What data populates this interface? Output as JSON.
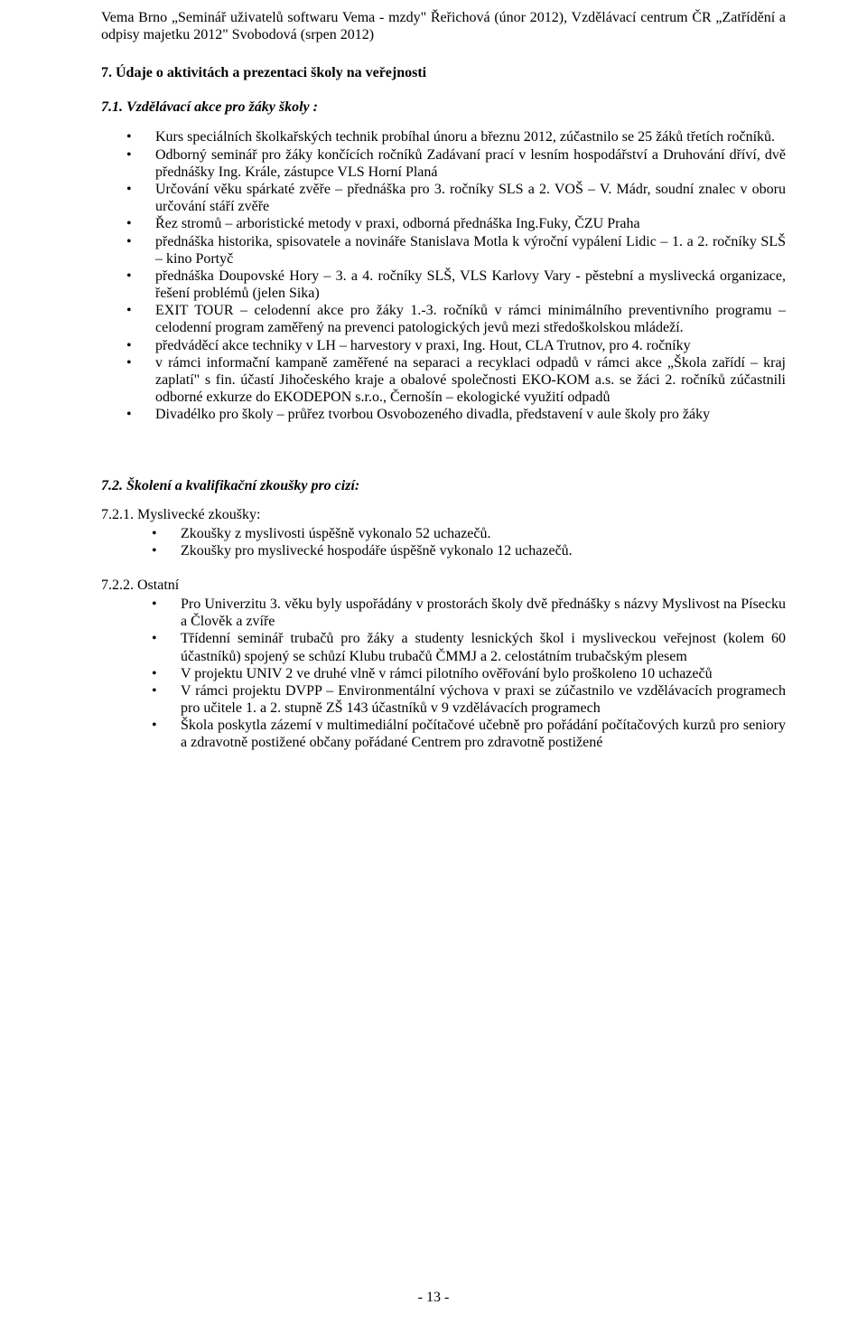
{
  "intro": "Vema Brno „Seminář uživatelů softwaru  Vema - mzdy\" Řeřichová (únor 2012), Vzdělávací centrum ČR „Zatřídění a odpisy majetku 2012\" Svobodová (srpen 2012)",
  "s7": {
    "title": "7. Údaje o aktivitách a prezentaci školy na veřejnosti",
    "s71": {
      "title": "7.1. Vzdělávací akce pro žáky školy :",
      "items": [
        "Kurs speciálních školkařských technik probíhal únoru a březnu 2012, zúčastnilo se 25  žáků třetích ročníků.",
        "Odborný seminář pro žáky končících ročníků  Zadávaní prací v lesním hospodářství a Druhování dříví, dvě přednášky  Ing. Krále, zástupce VLS Horní Planá",
        "Určování věku spárkaté zvěře – přednáška pro 3. ročníky SLS a 2. VOŠ – V. Mádr, soudní znalec v oboru určování stáří zvěře",
        "Řez stromů – arboristické metody v praxi, odborná přednáška Ing.Fuky,  ČZU Praha",
        "přednáška historika, spisovatele a novináře Stanislava Motla k výroční vypálení Lidic – 1. a 2. ročníky SLŠ – kino Portyč",
        "přednáška Doupovské Hory – 3. a 4. ročníky SLŠ, VLS Karlovy Vary -  pěstební a myslivecká organizace, řešení problémů (jelen Sika)",
        "EXIT TOUR – celodenní akce pro žáky 1.-3. ročníků v rámci minimálního preventivního programu – celodenní program zaměřený na prevenci patologických jevů mezi středoškolskou mládeží.",
        "předváděcí akce techniky v LH – harvestory v praxi, Ing. Hout, CLA Trutnov, pro 4. ročníky",
        "v rámci informační kampaně zaměřené na separaci a recyklaci odpadů  v rámci akce „Škola zařídí – kraj zaplatí\" s fin. účastí Jihočeského kraje a obalové společnosti EKO-KOM a.s. se žáci 2. ročníků zúčastnili odborné exkurze do EKODEPON s.r.o., Černošín – ekologické využití odpadů",
        "Divadélko pro školy – průřez tvorbou Osvobozeného divadla, představení v aule školy pro žáky"
      ]
    },
    "s72": {
      "title": "7.2. Školení a kvalifikační zkoušky  pro cizí:",
      "s721": {
        "title": "7.2.1.  Myslivecké zkoušky:",
        "items": [
          "Zkoušky z myslivosti  úspěšně vykonalo  52  uchazečů.",
          "Zkoušky pro myslivecké hospodáře  úspěšně vykonalo 12 uchazečů."
        ]
      },
      "s722": {
        "title": "7.2.2.  Ostatní",
        "items": [
          "Pro Univerzitu 3. věku byly uspořádány  v prostorách školy dvě přednášky s názvy Myslivost na Písecku a Člověk a zvíře",
          "Třídenní seminář trubačů pro žáky a studenty lesnických škol i mysliveckou veřejnost (kolem 60 účastníků) spojený se schůzí Klubu trubačů ČMMJ a 2. celostátním trubačským plesem",
          "V projektu UNIV 2 ve druhé  vlně  v rámci pilotního ověřování bylo proškoleno  10 uchazečů",
          "V rámci projektu DVPP – Environmentální výchova v praxi  se zúčastnilo ve vzdělávacích programech pro učitele 1.  a  2. stupně ZŠ  143 účastníků v 9 vzdělávacích programech",
          "Škola poskytla zázemí v multimediální počítačové učebně pro pořádání počítačových kurzů pro seniory a zdravotně postižené občany pořádané Centrem pro zdravotně postižené"
        ]
      }
    }
  },
  "pagenum": "- 13 -"
}
